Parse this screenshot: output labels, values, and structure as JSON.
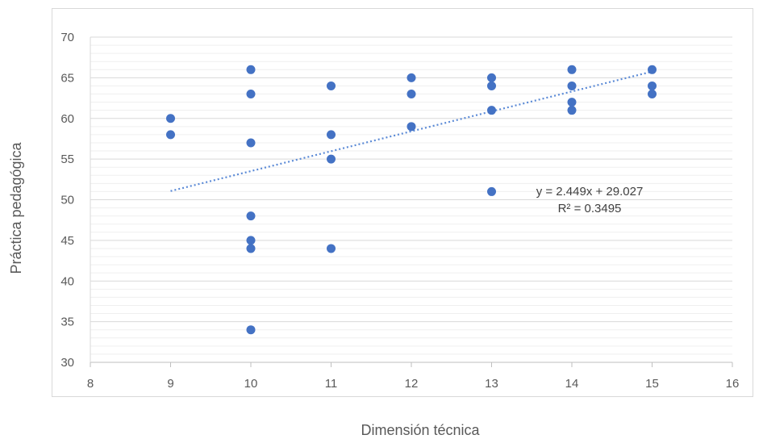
{
  "chart_data": {
    "type": "scatter",
    "xlabel": "Dimensión técnica",
    "ylabel": "Práctica pedagógica",
    "xlim": [
      8,
      16
    ],
    "ylim": [
      30,
      70
    ],
    "xticks": [
      8,
      9,
      10,
      11,
      12,
      13,
      14,
      15,
      16
    ],
    "yticks": [
      30,
      35,
      40,
      45,
      50,
      55,
      60,
      65,
      70
    ],
    "grid": true,
    "legend": "none",
    "colors": {
      "points": "#4472c4",
      "trendline": "#5b8ad6",
      "grid_major": "#d9d9d9",
      "grid_minor": "#efefef"
    },
    "points": [
      {
        "x": 9,
        "y": 60
      },
      {
        "x": 9,
        "y": 58
      },
      {
        "x": 10,
        "y": 66
      },
      {
        "x": 10,
        "y": 63
      },
      {
        "x": 10,
        "y": 57
      },
      {
        "x": 10,
        "y": 48
      },
      {
        "x": 10,
        "y": 45
      },
      {
        "x": 10,
        "y": 44
      },
      {
        "x": 10,
        "y": 34
      },
      {
        "x": 11,
        "y": 64
      },
      {
        "x": 11,
        "y": 58
      },
      {
        "x": 11,
        "y": 55
      },
      {
        "x": 11,
        "y": 44
      },
      {
        "x": 12,
        "y": 65
      },
      {
        "x": 12,
        "y": 63
      },
      {
        "x": 12,
        "y": 59
      },
      {
        "x": 13,
        "y": 65
      },
      {
        "x": 13,
        "y": 64
      },
      {
        "x": 13,
        "y": 61
      },
      {
        "x": 13,
        "y": 51
      },
      {
        "x": 14,
        "y": 66
      },
      {
        "x": 14,
        "y": 64
      },
      {
        "x": 14,
        "y": 62
      },
      {
        "x": 14,
        "y": 61
      },
      {
        "x": 15,
        "y": 66
      },
      {
        "x": 15,
        "y": 64
      },
      {
        "x": 15,
        "y": 63
      }
    ],
    "trendline": {
      "type": "linear",
      "slope": 2.449,
      "intercept": 29.027,
      "x_range": [
        9,
        15
      ],
      "style": "dotted"
    },
    "annotations": [
      "y = 2.449x + 29.027",
      "R² = 0.3495"
    ]
  }
}
